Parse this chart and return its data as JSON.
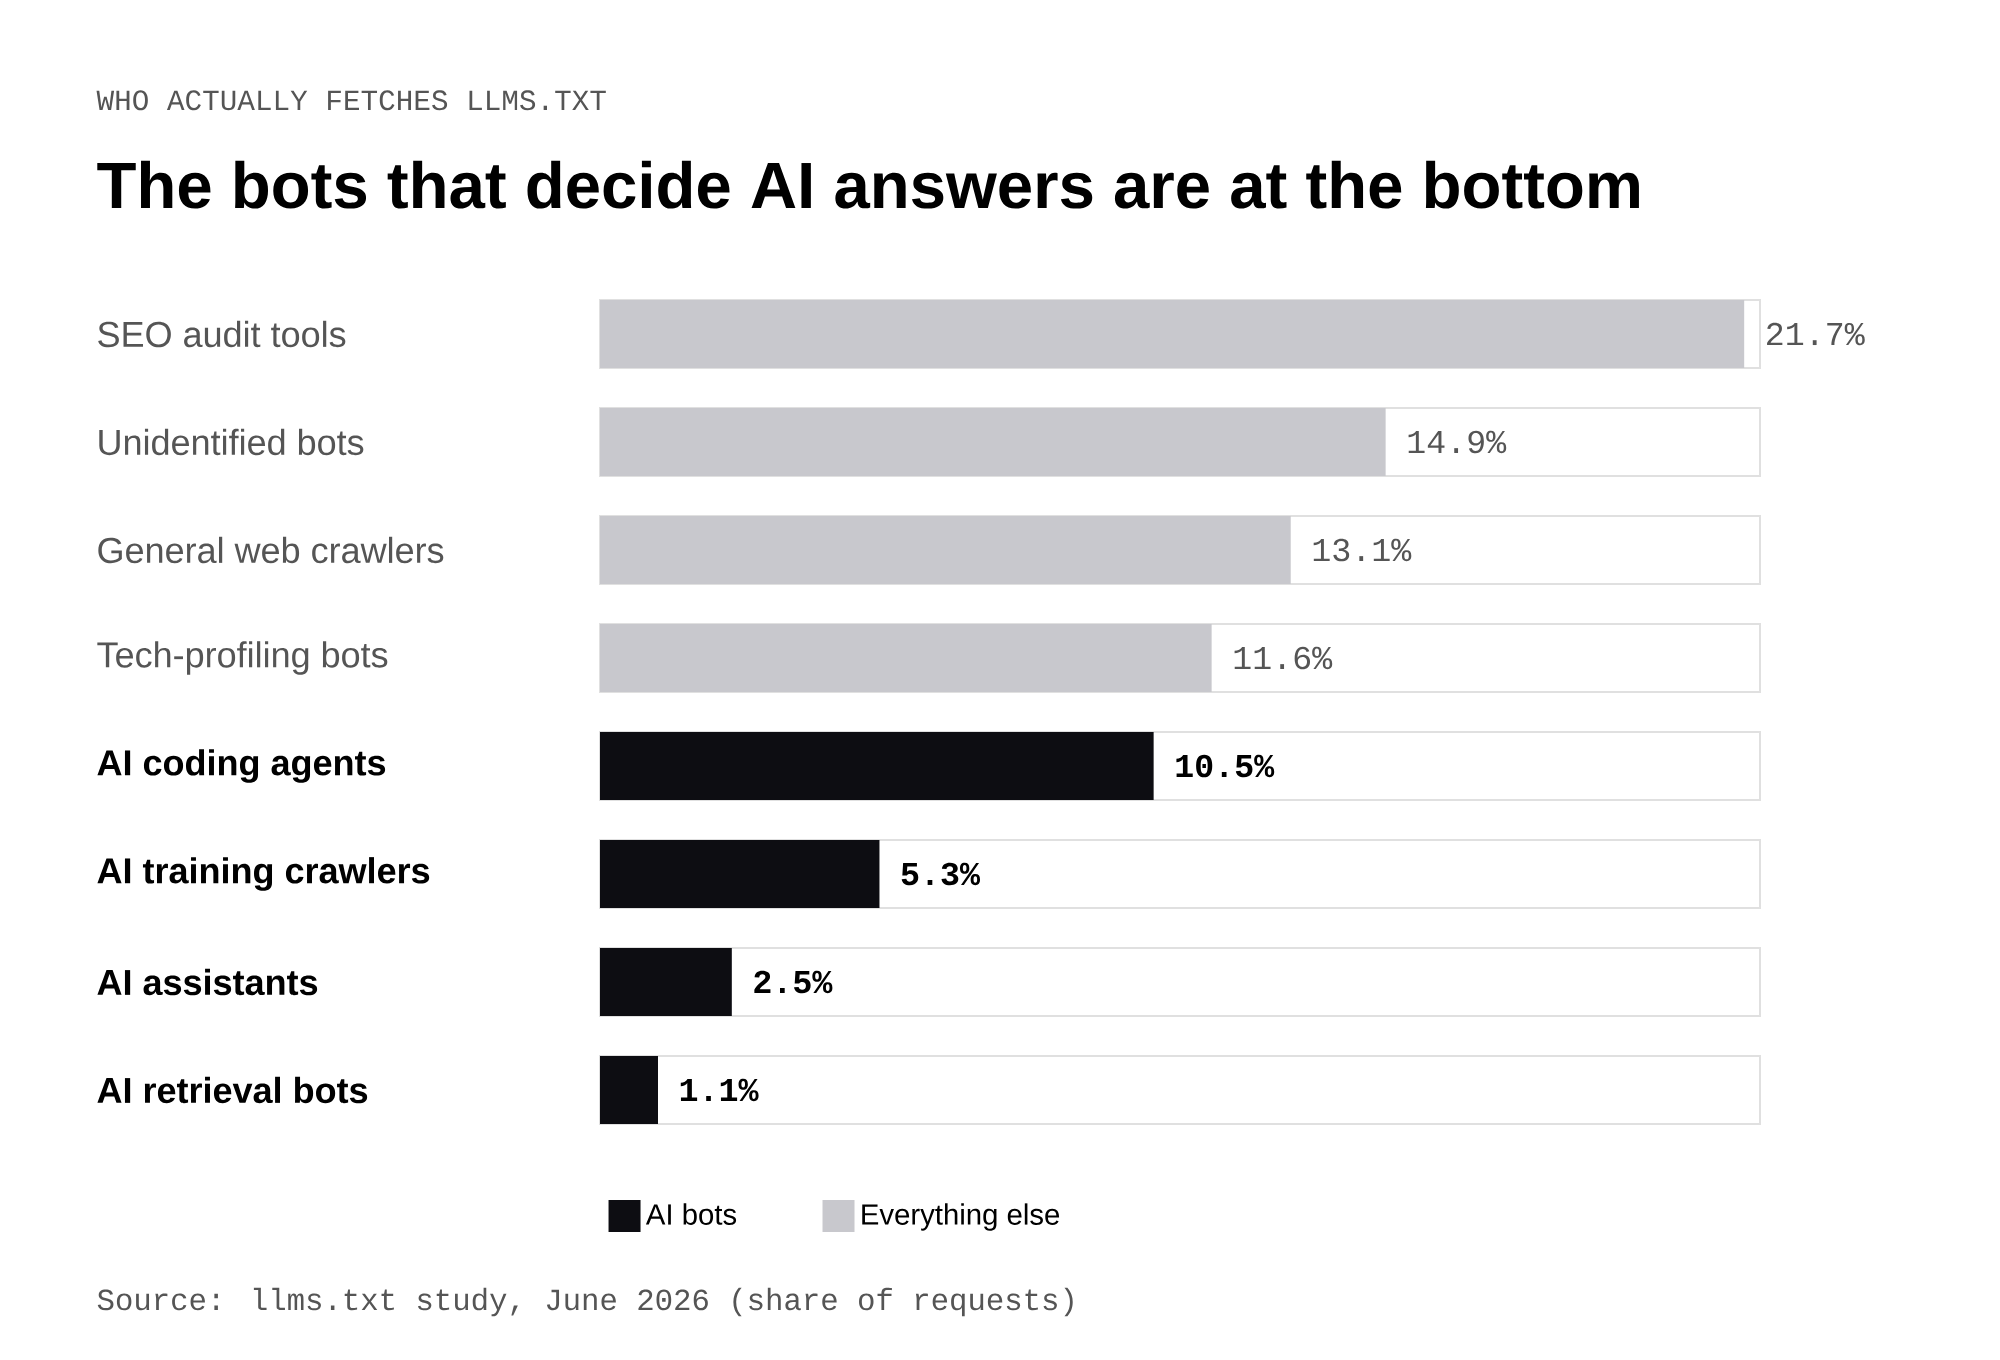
{
  "chart_data": {
    "type": "bar",
    "orientation": "horizontal",
    "subtitle": "WHO ACTUALLY FETCHES LLMS.TXT",
    "title": "The bots that decide AI answers are at the bottom",
    "categories": [
      "SEO audit tools",
      "Unidentified bots",
      "General web crawlers",
      "Tech-profiling bots",
      "AI coding agents",
      "AI training crawlers",
      "AI assistants",
      "AI retrieval bots"
    ],
    "series": [
      {
        "name": "AI bots",
        "color": "#0d0d12",
        "values": [
          null,
          null,
          null,
          null,
          10.5,
          5.3,
          2.5,
          1.1
        ],
        "value_labels": [
          null,
          null,
          null,
          null,
          "10.5%",
          "5.3%",
          "2.5%",
          "1.1%"
        ]
      },
      {
        "name": "Everything else",
        "color": "#c8c8cd",
        "values": [
          21.7,
          14.9,
          13.1,
          11.6,
          null,
          null,
          null,
          null
        ],
        "value_labels": [
          "21.7%",
          "14.9%",
          "13.1%",
          "11.6%",
          null,
          null,
          null,
          null
        ]
      }
    ],
    "xlim": [
      0,
      22
    ],
    "tick_labels": "y",
    "legend": "bottom",
    "annotations": [
      "Source: llms.txt study, June 2026 (share of requests)"
    ]
  }
}
